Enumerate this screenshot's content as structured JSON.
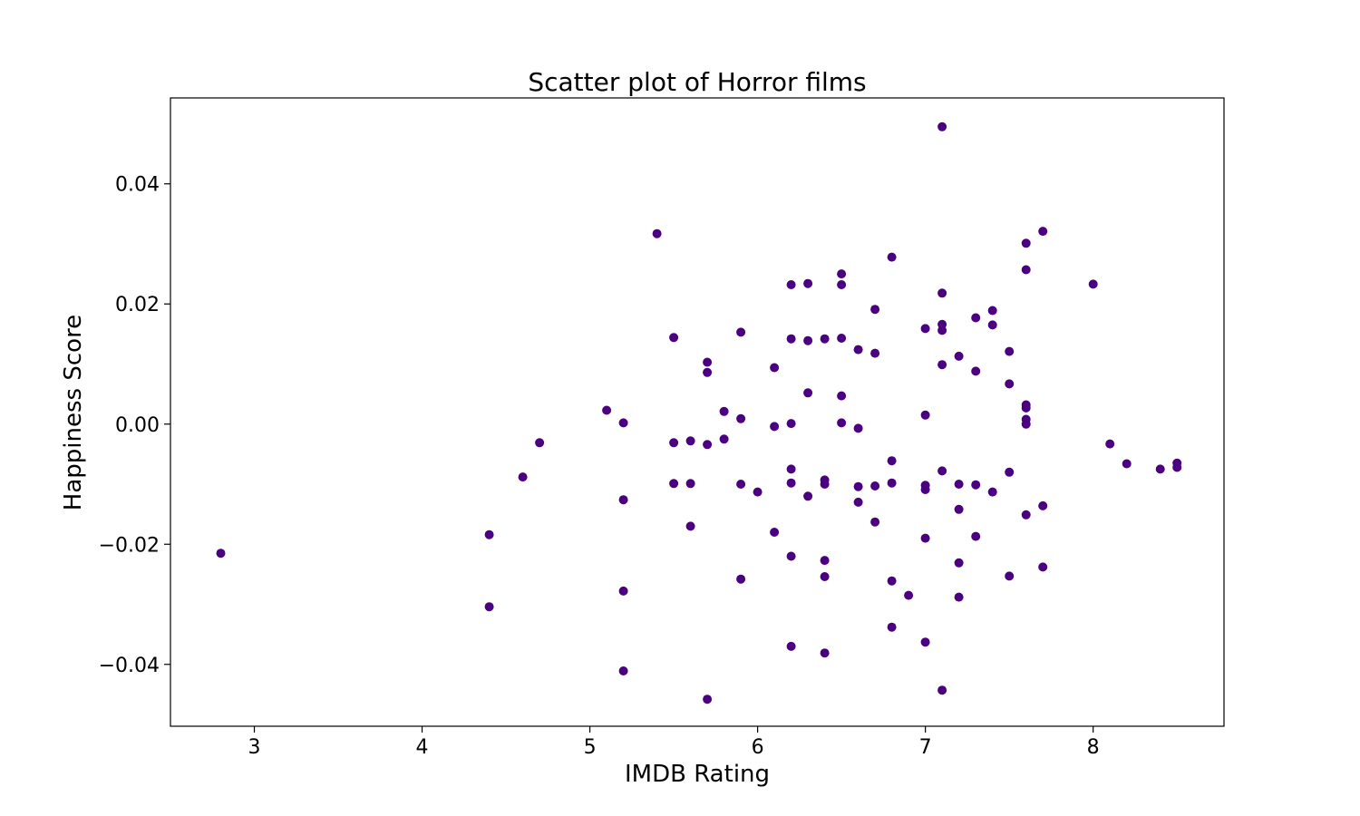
{
  "chart_data": {
    "type": "scatter",
    "title": "Scatter plot of Horror films",
    "xlabel": "IMDB Rating",
    "ylabel": "Happiness Score",
    "xlim": [
      2.5,
      8.78
    ],
    "ylim": [
      -0.0503,
      0.0543
    ],
    "xticks": [
      3,
      4,
      5,
      6,
      7,
      8
    ],
    "xtick_labels": [
      "3",
      "4",
      "5",
      "6",
      "7",
      "8"
    ],
    "yticks": [
      -0.04,
      -0.02,
      0.0,
      0.02,
      0.04
    ],
    "ytick_labels": [
      "−0.04",
      "−0.02",
      "0.00",
      "0.02",
      "0.04"
    ],
    "marker_color": "#4b0082",
    "grid": false,
    "points": [
      [
        2.8,
        -0.0215
      ],
      [
        4.4,
        -0.0184
      ],
      [
        4.4,
        -0.0304
      ],
      [
        4.6,
        -0.0088
      ],
      [
        4.7,
        -0.0031
      ],
      [
        5.1,
        0.0023
      ],
      [
        5.2,
        0.0002
      ],
      [
        5.2,
        -0.0126
      ],
      [
        5.2,
        -0.0278
      ],
      [
        5.2,
        -0.0411
      ],
      [
        5.4,
        0.0317
      ],
      [
        5.5,
        0.0144
      ],
      [
        5.5,
        -0.0031
      ],
      [
        5.5,
        -0.0099
      ],
      [
        5.6,
        -0.0028
      ],
      [
        5.6,
        -0.0099
      ],
      [
        5.6,
        -0.017
      ],
      [
        5.7,
        0.0103
      ],
      [
        5.7,
        0.0086
      ],
      [
        5.7,
        -0.0034
      ],
      [
        5.7,
        -0.0458
      ],
      [
        5.8,
        0.0021
      ],
      [
        5.8,
        -0.0025
      ],
      [
        5.9,
        0.0153
      ],
      [
        5.9,
        0.0009
      ],
      [
        5.9,
        -0.01
      ],
      [
        5.9,
        -0.0258
      ],
      [
        6.0,
        -0.0113
      ],
      [
        6.1,
        0.0094
      ],
      [
        6.1,
        -0.0004
      ],
      [
        6.1,
        -0.018
      ],
      [
        6.2,
        0.0232
      ],
      [
        6.2,
        0.0142
      ],
      [
        6.2,
        0.0001
      ],
      [
        6.2,
        -0.0075
      ],
      [
        6.2,
        -0.0098
      ],
      [
        6.2,
        -0.022
      ],
      [
        6.2,
        -0.037
      ],
      [
        6.3,
        0.0234
      ],
      [
        6.3,
        0.0139
      ],
      [
        6.3,
        0.0052
      ],
      [
        6.3,
        -0.012
      ],
      [
        6.4,
        0.0142
      ],
      [
        6.4,
        -0.0093
      ],
      [
        6.4,
        -0.01
      ],
      [
        6.4,
        -0.0227
      ],
      [
        6.4,
        -0.0254
      ],
      [
        6.4,
        -0.0381
      ],
      [
        6.5,
        0.025
      ],
      [
        6.5,
        0.0232
      ],
      [
        6.5,
        0.0143
      ],
      [
        6.5,
        0.0047
      ],
      [
        6.5,
        0.0002
      ],
      [
        6.6,
        0.0124
      ],
      [
        6.6,
        -0.0007
      ],
      [
        6.6,
        -0.0104
      ],
      [
        6.6,
        -0.013
      ],
      [
        6.7,
        0.0191
      ],
      [
        6.7,
        0.0118
      ],
      [
        6.7,
        -0.0103
      ],
      [
        6.7,
        -0.0163
      ],
      [
        6.8,
        0.0278
      ],
      [
        6.8,
        -0.0061
      ],
      [
        6.8,
        -0.0098
      ],
      [
        6.8,
        -0.0261
      ],
      [
        6.8,
        -0.0338
      ],
      [
        6.9,
        -0.0285
      ],
      [
        7.0,
        0.0159
      ],
      [
        7.0,
        0.0015
      ],
      [
        7.0,
        -0.0102
      ],
      [
        7.0,
        -0.0109
      ],
      [
        7.0,
        -0.019
      ],
      [
        7.0,
        -0.0363
      ],
      [
        7.1,
        0.0495
      ],
      [
        7.1,
        0.0218
      ],
      [
        7.1,
        0.0166
      ],
      [
        7.1,
        0.0156
      ],
      [
        7.1,
        0.0099
      ],
      [
        7.1,
        -0.0078
      ],
      [
        7.1,
        -0.0443
      ],
      [
        7.2,
        0.0113
      ],
      [
        7.2,
        -0.01
      ],
      [
        7.2,
        -0.0142
      ],
      [
        7.2,
        -0.0231
      ],
      [
        7.2,
        -0.0288
      ],
      [
        7.3,
        0.0177
      ],
      [
        7.3,
        0.0088
      ],
      [
        7.3,
        -0.0101
      ],
      [
        7.3,
        -0.0187
      ],
      [
        7.4,
        0.0189
      ],
      [
        7.4,
        0.0165
      ],
      [
        7.4,
        -0.0113
      ],
      [
        7.5,
        0.0121
      ],
      [
        7.5,
        0.0067
      ],
      [
        7.5,
        -0.008
      ],
      [
        7.5,
        -0.0253
      ],
      [
        7.6,
        0.0301
      ],
      [
        7.6,
        0.0257
      ],
      [
        7.6,
        0.0032
      ],
      [
        7.6,
        0.0027
      ],
      [
        7.6,
        0.0008
      ],
      [
        7.6,
        0.0
      ],
      [
        7.6,
        -0.0151
      ],
      [
        7.7,
        0.0321
      ],
      [
        7.7,
        -0.0136
      ],
      [
        7.7,
        -0.0238
      ],
      [
        8.0,
        0.0233
      ],
      [
        8.1,
        -0.0033
      ],
      [
        8.2,
        -0.0066
      ],
      [
        8.4,
        -0.0075
      ],
      [
        8.5,
        -0.0065
      ],
      [
        8.5,
        -0.0072
      ]
    ]
  }
}
